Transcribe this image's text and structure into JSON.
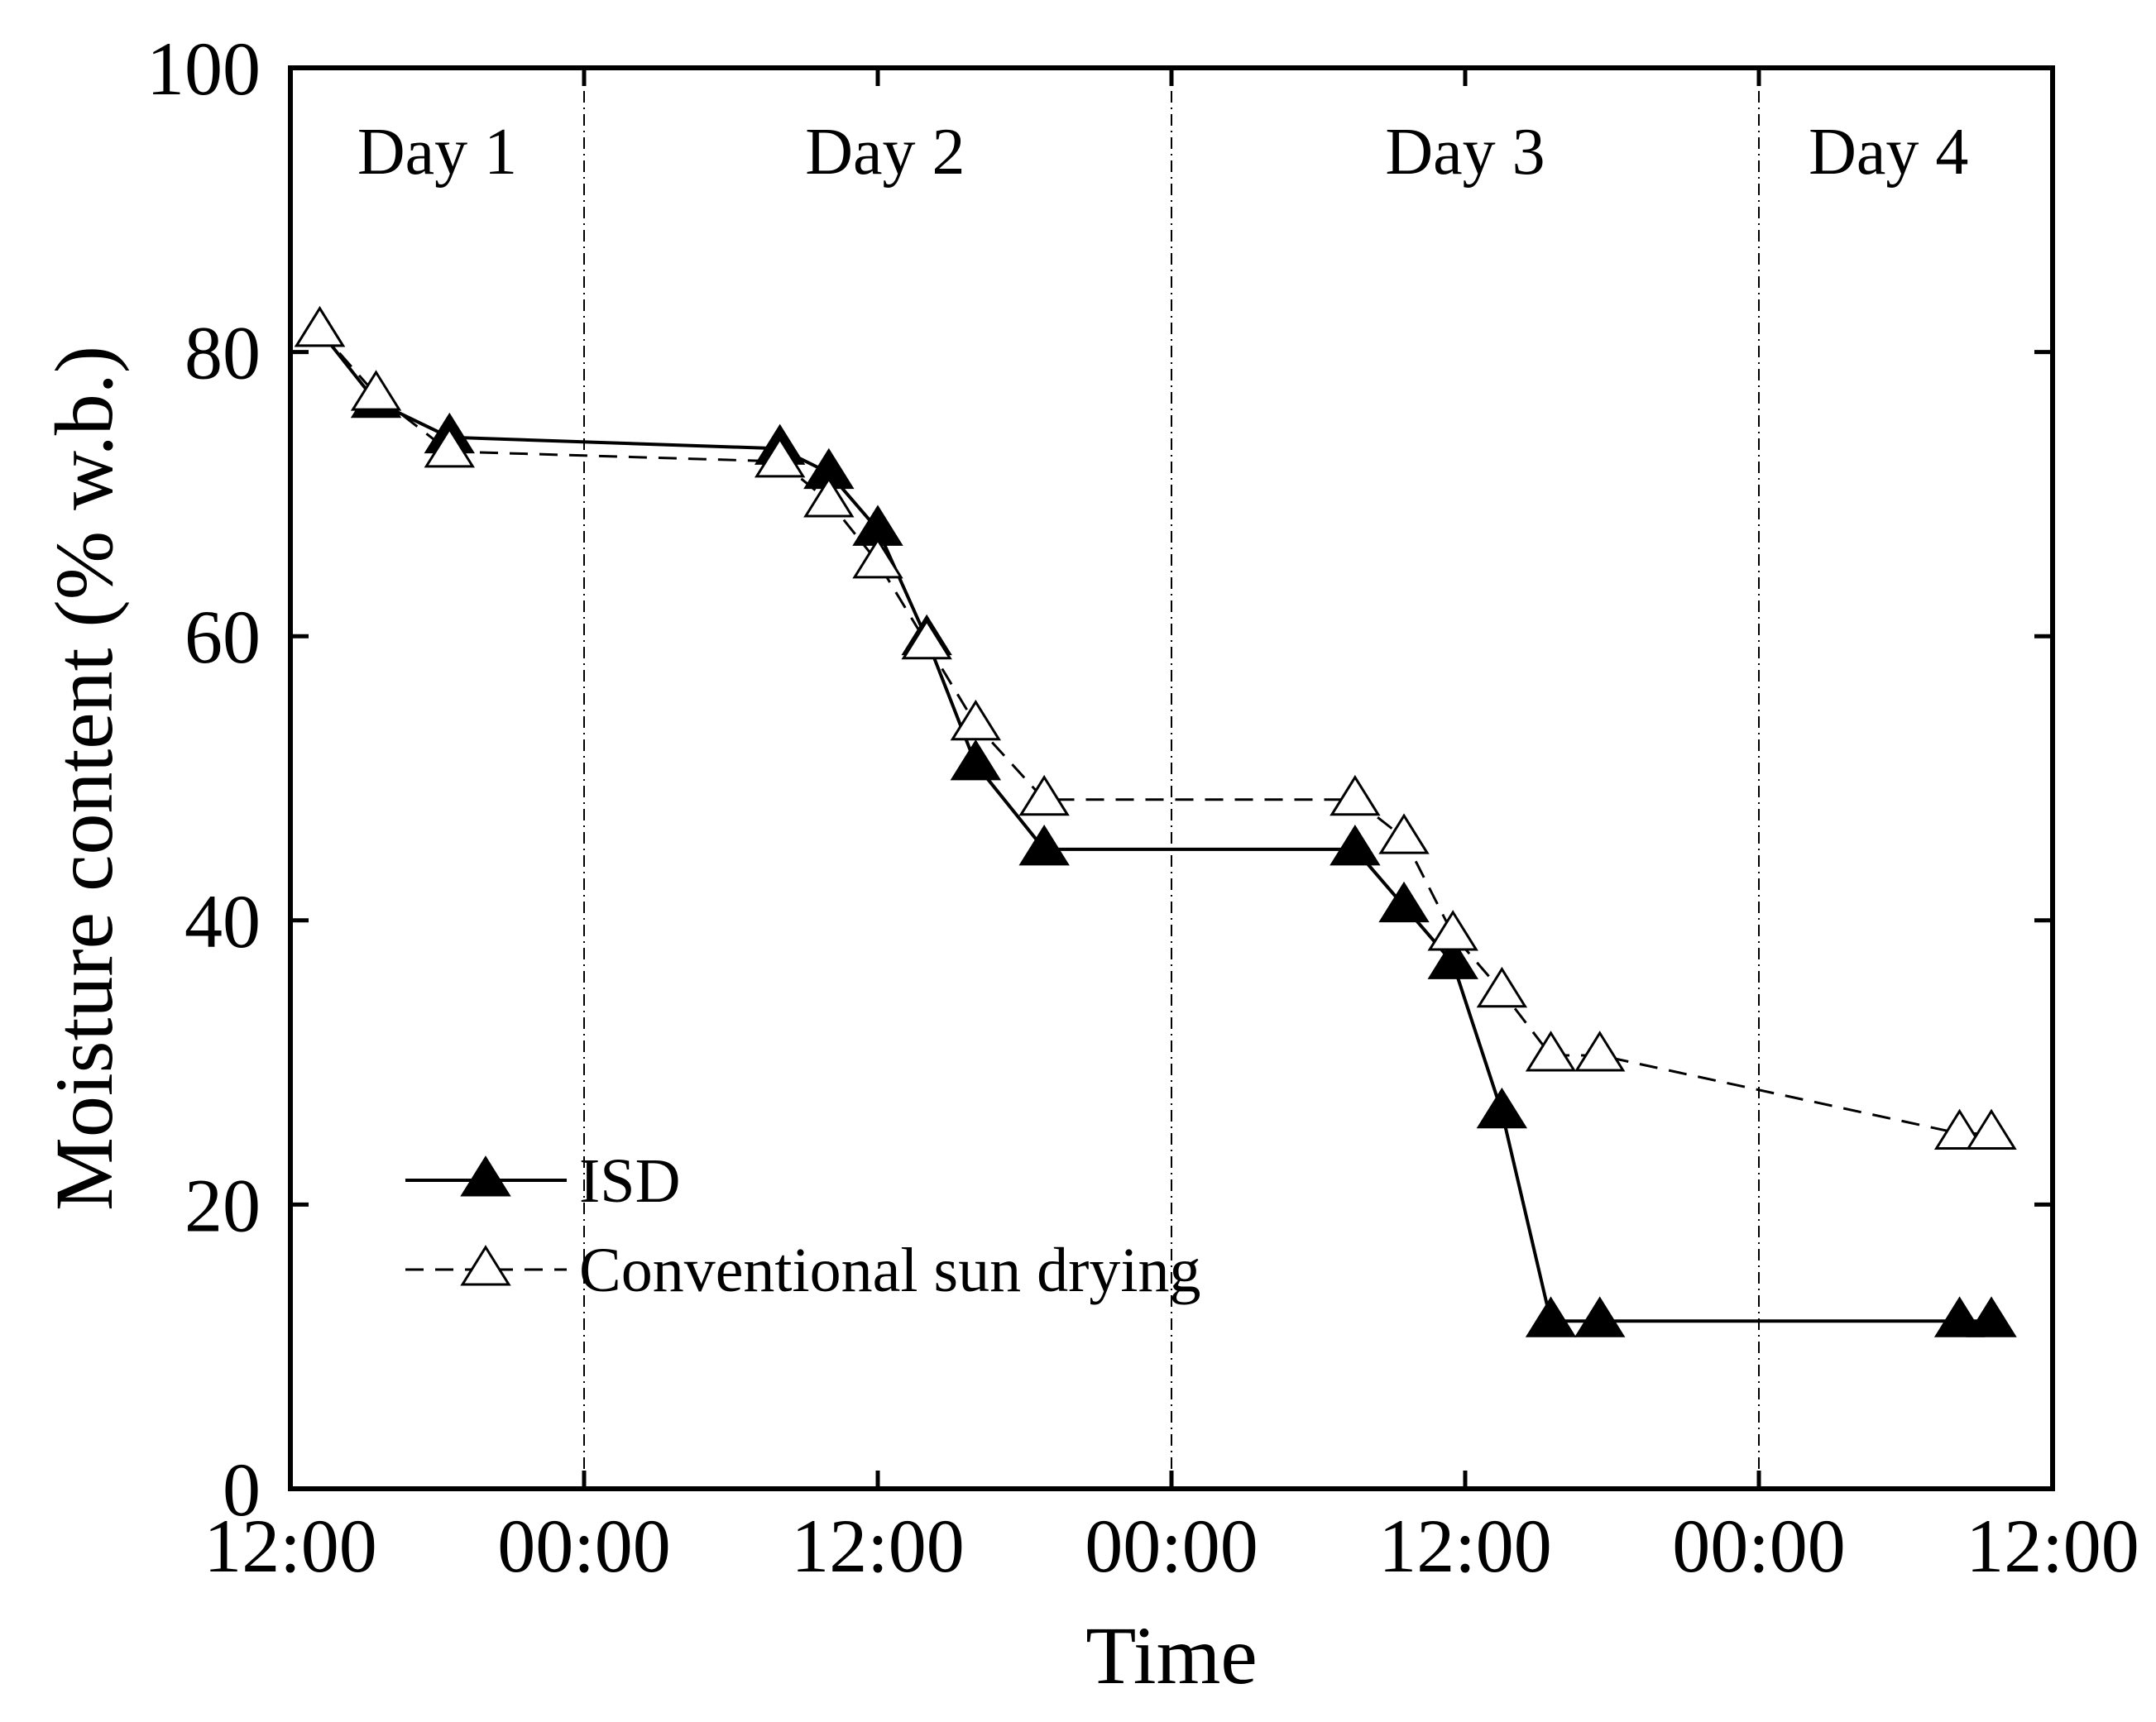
{
  "chart_data": {
    "type": "line",
    "title": "",
    "xlabel": "Time",
    "ylabel": "Moisture content (% w.b.)",
    "xlim": [
      0,
      72
    ],
    "ylim": [
      0,
      100
    ],
    "x_unit": "hours from 12:00 on Day 1",
    "x_ticks": [
      {
        "value": 0,
        "label": "12:00"
      },
      {
        "value": 12,
        "label": "00:00"
      },
      {
        "value": 24,
        "label": "12:00"
      },
      {
        "value": 36,
        "label": "00:00"
      },
      {
        "value": 48,
        "label": "12:00"
      },
      {
        "value": 60,
        "label": "00:00"
      },
      {
        "value": 72,
        "label": "12:00"
      }
    ],
    "y_ticks": [
      {
        "value": 0,
        "label": "0"
      },
      {
        "value": 20,
        "label": "20"
      },
      {
        "value": 40,
        "label": "40"
      },
      {
        "value": 60,
        "label": "60"
      },
      {
        "value": 80,
        "label": "80"
      },
      {
        "value": 100,
        "label": "100"
      }
    ],
    "day_separators": [
      12,
      36,
      60
    ],
    "day_labels": [
      {
        "label": "Day 1",
        "x": 6
      },
      {
        "label": "Day 2",
        "x": 24.3
      },
      {
        "label": "Day 3",
        "x": 48
      },
      {
        "label": "Day 4",
        "x": 65.3
      }
    ],
    "series": [
      {
        "name": "ISD",
        "style": "solid",
        "marker": "filled-triangle",
        "color": "#000000",
        "points": [
          {
            "x": 1.2,
            "y": 81.5
          },
          {
            "x": 3.5,
            "y": 76.5
          },
          {
            "x": 6.5,
            "y": 74
          },
          {
            "x": 20,
            "y": 73.2
          },
          {
            "x": 22,
            "y": 71.5
          },
          {
            "x": 24,
            "y": 67.5
          },
          {
            "x": 26,
            "y": 59.8
          },
          {
            "x": 28,
            "y": 51
          },
          {
            "x": 30.8,
            "y": 45
          },
          {
            "x": 43.5,
            "y": 45
          },
          {
            "x": 45.5,
            "y": 41
          },
          {
            "x": 47.5,
            "y": 37
          },
          {
            "x": 49.5,
            "y": 26.5
          },
          {
            "x": 51.5,
            "y": 11.8
          },
          {
            "x": 53.5,
            "y": 11.8
          },
          {
            "x": 68.2,
            "y": 11.8
          },
          {
            "x": 69.5,
            "y": 11.8
          }
        ]
      },
      {
        "name": "Conventional sun drying",
        "style": "dashed",
        "marker": "open-triangle",
        "color": "#000000",
        "points": [
          {
            "x": 1.2,
            "y": 81.5
          },
          {
            "x": 3.5,
            "y": 77
          },
          {
            "x": 6.5,
            "y": 73
          },
          {
            "x": 20,
            "y": 72.3
          },
          {
            "x": 22,
            "y": 69.5
          },
          {
            "x": 24,
            "y": 65.2
          },
          {
            "x": 26,
            "y": 59.5
          },
          {
            "x": 28,
            "y": 53.8
          },
          {
            "x": 30.8,
            "y": 48.5
          },
          {
            "x": 43.5,
            "y": 48.5
          },
          {
            "x": 45.5,
            "y": 45.8
          },
          {
            "x": 47.5,
            "y": 39
          },
          {
            "x": 49.5,
            "y": 35
          },
          {
            "x": 51.5,
            "y": 30.5
          },
          {
            "x": 53.5,
            "y": 30.5
          },
          {
            "x": 68.2,
            "y": 25
          },
          {
            "x": 69.5,
            "y": 25
          }
        ]
      }
    ],
    "legend": {
      "position": "lower-left",
      "entries": [
        "ISD",
        "Conventional sun drying"
      ]
    }
  }
}
